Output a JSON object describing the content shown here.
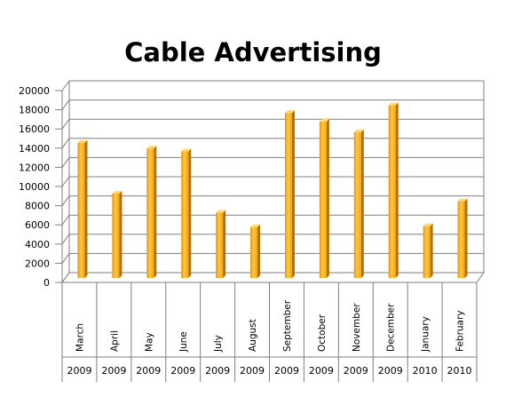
{
  "chart_data": {
    "type": "bar",
    "title": "Cable Advertising",
    "xlabel": "",
    "ylabel": "",
    "ylim": [
      0,
      20000
    ],
    "yticks": [
      0,
      2000,
      4000,
      6000,
      8000,
      10000,
      12000,
      14000,
      16000,
      18000,
      20000
    ],
    "grid": true,
    "legend": "none",
    "categories": [
      "March",
      "April",
      "May",
      "June",
      "July",
      "August",
      "September",
      "October",
      "November",
      "December",
      "January",
      "February"
    ],
    "years": [
      "2009",
      "2009",
      "2009",
      "2009",
      "2009",
      "2009",
      "2009",
      "2009",
      "2009",
      "2009",
      "2010",
      "2010"
    ],
    "values": [
      14100,
      8800,
      13500,
      13200,
      6800,
      5300,
      17200,
      16300,
      15200,
      18000,
      5400,
      8000
    ],
    "bar_color": "#F5A623"
  }
}
